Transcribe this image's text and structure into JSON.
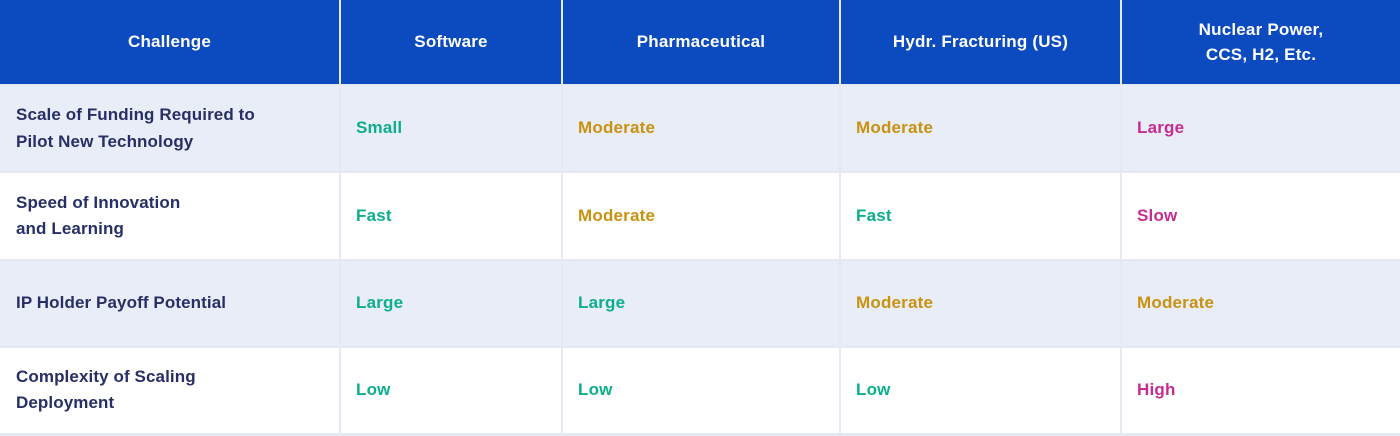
{
  "colors": {
    "header_bg": "#0b4abf",
    "header_text": "#ffffff",
    "row_alt_bg": "#e9edf8",
    "row_bg": "#ffffff",
    "label_text": "#272f66",
    "grid_line": "#e4e9f4",
    "rating_green": "#0cae8c",
    "rating_gold": "#c9920f",
    "rating_magenta": "#c62c92"
  },
  "chart_data": {
    "type": "table",
    "columns": [
      "Challenge",
      "Software",
      "Pharmaceutical",
      "Hydr. Fracturing (US)",
      "Nuclear Power,\nCCS, H2, Etc."
    ],
    "rows": [
      {
        "challenge": "Scale of Funding Required to\nPilot New Technology",
        "values": [
          {
            "text": "Small",
            "color": "#0cae8c"
          },
          {
            "text": "Moderate",
            "color": "#c9920f"
          },
          {
            "text": "Moderate",
            "color": "#c9920f"
          },
          {
            "text": "Large",
            "color": "#c62c92"
          }
        ]
      },
      {
        "challenge": "Speed of Innovation\nand Learning",
        "values": [
          {
            "text": "Fast",
            "color": "#0cae8c"
          },
          {
            "text": "Moderate",
            "color": "#c9920f"
          },
          {
            "text": "Fast",
            "color": "#0cae8c"
          },
          {
            "text": "Slow",
            "color": "#c62c92"
          }
        ]
      },
      {
        "challenge": "IP Holder Payoff Potential",
        "values": [
          {
            "text": "Large",
            "color": "#0cae8c"
          },
          {
            "text": "Large",
            "color": "#0cae8c"
          },
          {
            "text": "Moderate",
            "color": "#c9920f"
          },
          {
            "text": "Moderate",
            "color": "#c9920f"
          }
        ]
      },
      {
        "challenge": "Complexity of Scaling\nDeployment",
        "values": [
          {
            "text": "Low",
            "color": "#0cae8c"
          },
          {
            "text": "Low",
            "color": "#0cae8c"
          },
          {
            "text": "Low",
            "color": "#0cae8c"
          },
          {
            "text": "High",
            "color": "#c62c92"
          }
        ]
      }
    ]
  }
}
